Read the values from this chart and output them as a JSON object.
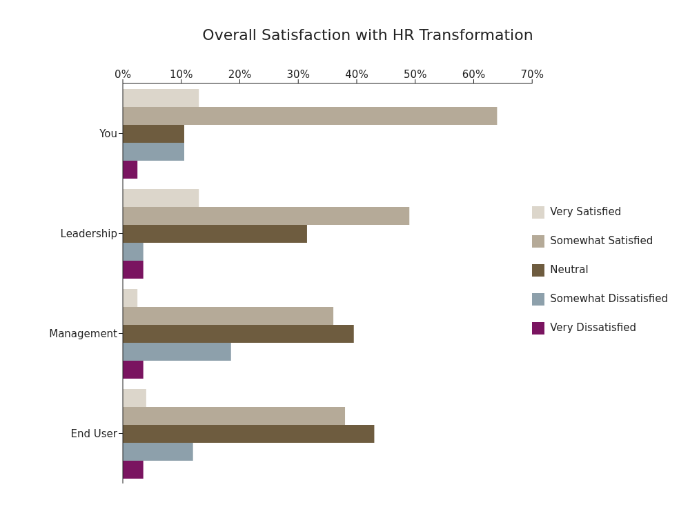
{
  "chart_data": {
    "type": "bar",
    "orientation": "horizontal",
    "title": "Overall Satisfaction with HR Transformation",
    "categories": [
      "You",
      "Leadership",
      "Management",
      "End User"
    ],
    "series": [
      {
        "name": "Very Satisfied",
        "color": "#dcd6cb",
        "values": [
          13,
          13,
          2.5,
          4
        ]
      },
      {
        "name": "Somewhat Satisfied",
        "color": "#b5aa98",
        "values": [
          64,
          49,
          36,
          38
        ]
      },
      {
        "name": "Neutral",
        "color": "#6e5c3f",
        "values": [
          10.5,
          31.5,
          39.5,
          43
        ]
      },
      {
        "name": "Somewhat Dissatisfied",
        "color": "#8da0ab",
        "values": [
          10.5,
          3.5,
          18.5,
          12
        ]
      },
      {
        "name": "Very Dissatisfied",
        "color": "#7a1460",
        "values": [
          2.5,
          3.5,
          3.5,
          3.5
        ]
      }
    ],
    "xlim": [
      0,
      70
    ],
    "xticks": [
      {
        "value": 0,
        "label": "0%"
      },
      {
        "value": 10,
        "label": "10%"
      },
      {
        "value": 20,
        "label": "20%"
      },
      {
        "value": 30,
        "label": "30%"
      },
      {
        "value": 40,
        "label": "40%"
      },
      {
        "value": 50,
        "label": "50%"
      },
      {
        "value": 60,
        "label": "60%"
      },
      {
        "value": 70,
        "label": "70%"
      }
    ],
    "grid": false,
    "legend": "right"
  }
}
